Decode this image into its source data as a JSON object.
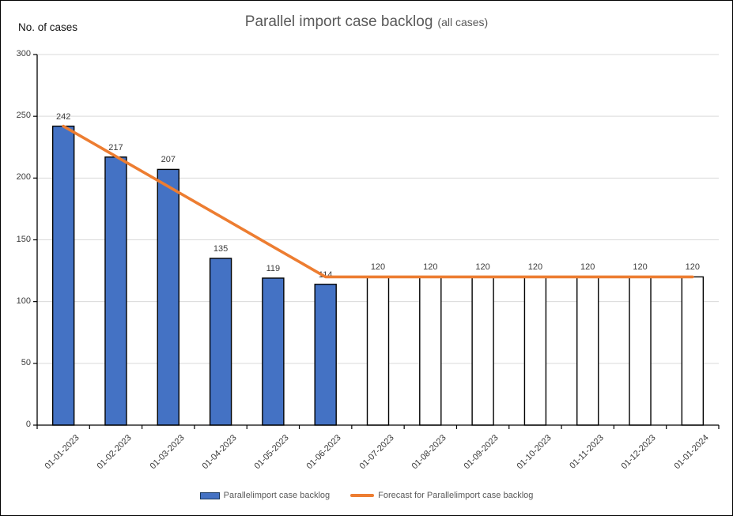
{
  "header": {
    "note": "No. of cases",
    "title": "Parallel import case backlog",
    "subtitle": "(all cases)"
  },
  "legend": {
    "bar_label": "Parallelimport case backlog",
    "line_label": "Forecast for Parallelimport case backlog"
  },
  "colors": {
    "bar_fill": "#4472C4",
    "bar_border": "#000000",
    "forecast_bar_fill": "#FFFFFF",
    "forecast_bar_border": "#000000",
    "line": "#ED7D31",
    "gridline": "#D9D9D9",
    "axis": "#000000",
    "title": "#595959",
    "text": "#3b3b3b"
  },
  "chart_data": {
    "type": "bar+line",
    "title": "Parallel import case backlog",
    "subtitle": "(all cases)",
    "y_axis_note": "No. of cases",
    "ylim": [
      0,
      300
    ],
    "yticks": [
      0,
      50,
      100,
      150,
      200,
      250,
      300
    ],
    "grid": true,
    "legend_position": "bottom",
    "categories": [
      "01-01-2023",
      "01-02-2023",
      "01-03-2023",
      "01-04-2023",
      "01-05-2023",
      "01-06-2023",
      "01-07-2023",
      "01-08-2023",
      "01-09-2023",
      "01-10-2023",
      "01-11-2023",
      "01-12-2023",
      "01-01-2024"
    ],
    "bar_labels": [
      242,
      217,
      207,
      135,
      119,
      114,
      120,
      120,
      120,
      120,
      120,
      120,
      120
    ],
    "series": [
      {
        "name": "Parallelimport case backlog",
        "type": "bar",
        "style": "actual",
        "fill": "#4472C4",
        "border": "#000000",
        "values": [
          242,
          217,
          207,
          135,
          119,
          114,
          null,
          null,
          null,
          null,
          null,
          null,
          null
        ]
      },
      {
        "name": "Parallelimport case backlog (forecast bars)",
        "type": "bar",
        "style": "forecast",
        "fill": "#FFFFFF",
        "border": "#000000",
        "values": [
          null,
          null,
          null,
          null,
          null,
          null,
          120,
          120,
          120,
          120,
          120,
          120,
          120
        ]
      },
      {
        "name": "Forecast for Parallelimport case backlog",
        "type": "line",
        "color": "#ED7D31",
        "values": [
          242,
          217.6,
          193.2,
          168.8,
          144.4,
          120,
          120,
          120,
          120,
          120,
          120,
          120,
          120
        ]
      }
    ]
  }
}
